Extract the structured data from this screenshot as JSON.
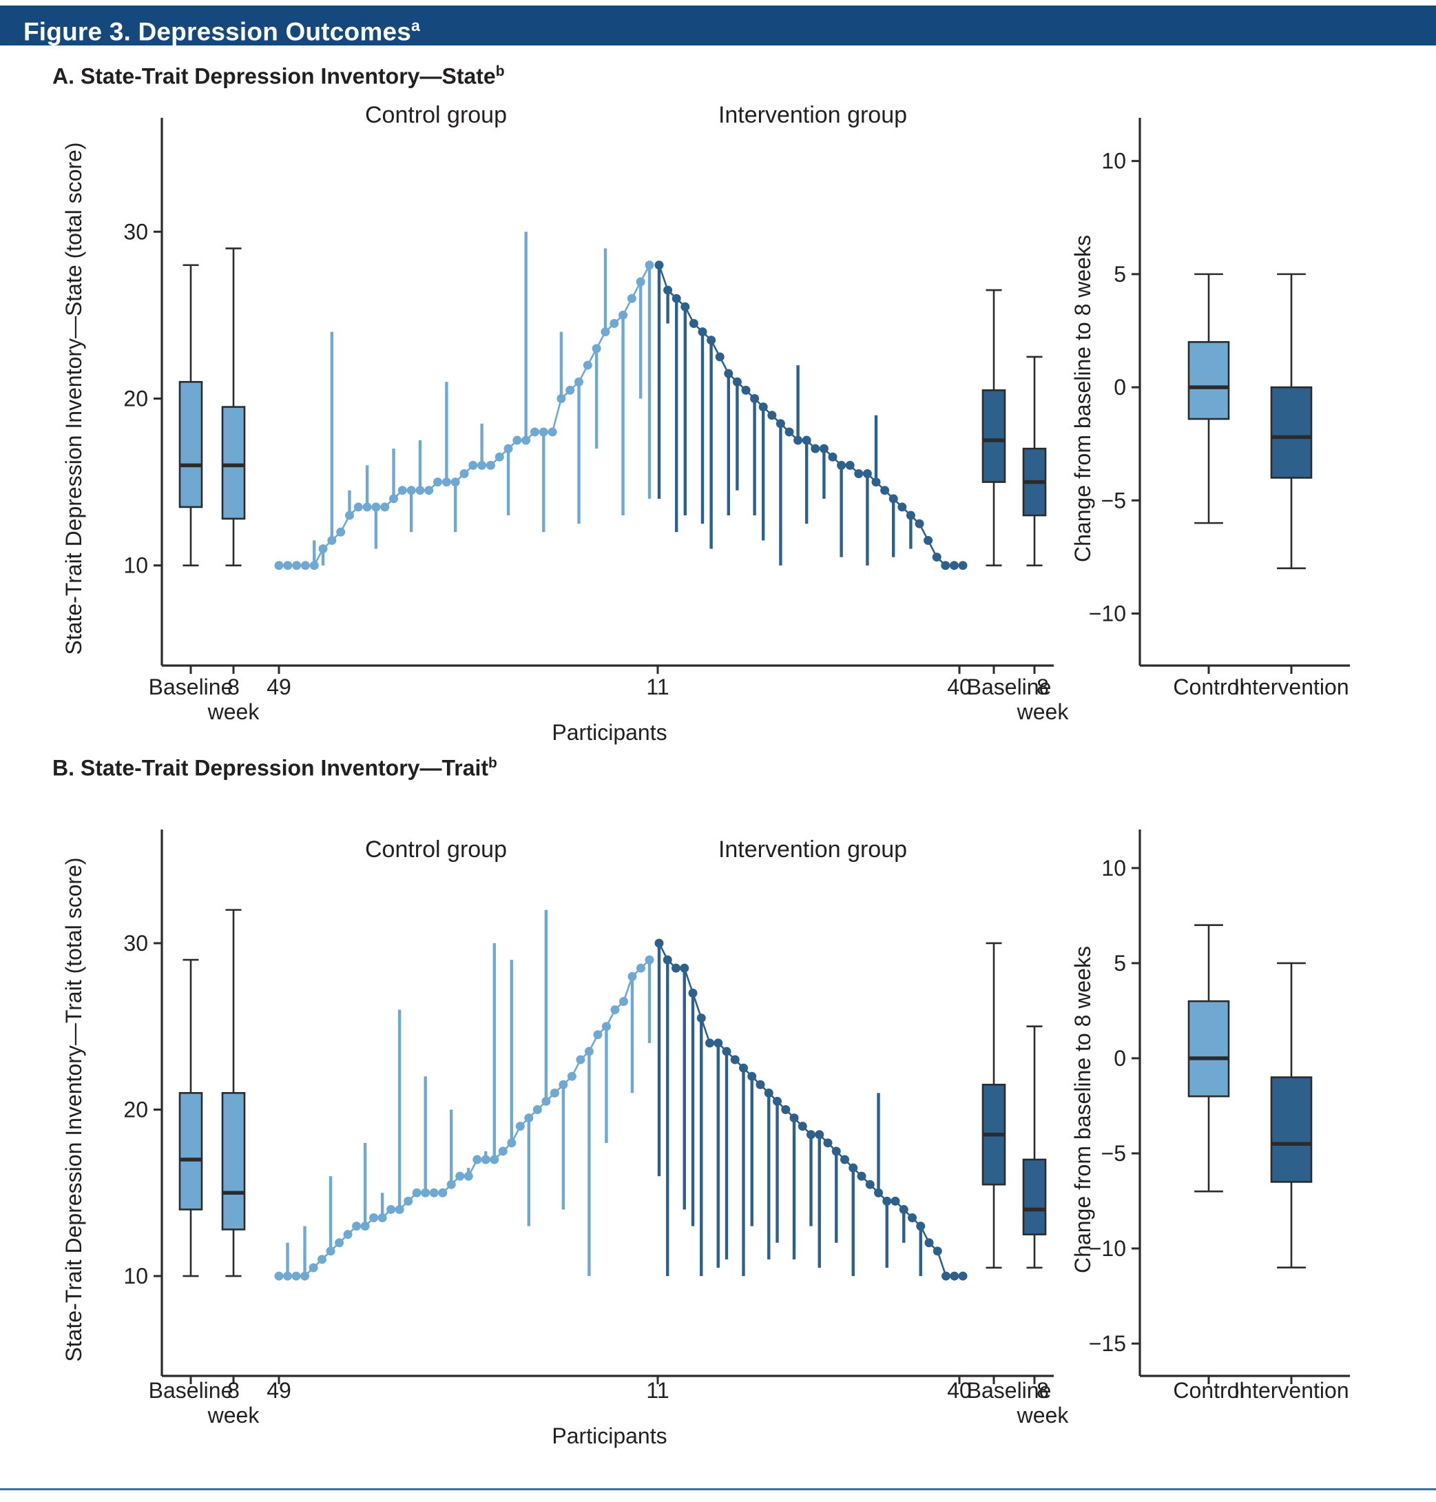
{
  "figure": {
    "title": "Figure 3. Depression Outcomes",
    "title_sup": "a",
    "titlebar_color": "#15497d",
    "bottom_rule_color": "#35709f"
  },
  "colors": {
    "control": "#6fa8d0",
    "intervention": "#2e608c",
    "control_label_text": "#7db3d9",
    "intervention_label_text": "#3f719f",
    "box_stroke": "#2b2b2b",
    "axis": "#2b2b2b"
  },
  "chart_data": [
    {
      "type": "box+waterfall",
      "panel_label": "A. State-Trait Depression Inventory—State",
      "panel_sup": "b",
      "ylabel": "State-Trait Depression Inventory—State (total score)",
      "yticks": [
        10,
        20,
        30
      ],
      "ylim": [
        4,
        36
      ],
      "xlabel": "Participants",
      "group_labels": {
        "control": "Control group",
        "intervention": "Intervention group"
      },
      "xticks": {
        "left": [
          "Baseline",
          "8"
        ],
        "left_sub": "week",
        "start": "49",
        "mid": "11",
        "end": "40",
        "right": [
          "Baseline",
          "8"
        ],
        "right_sub": "week"
      },
      "boxes": {
        "control_baseline": {
          "min": 10,
          "q1": 13.5,
          "median": 16,
          "q3": 21,
          "max": 28
        },
        "control_week8": {
          "min": 10,
          "q1": 12.8,
          "median": 16,
          "q3": 19.5,
          "max": 29
        },
        "intervention_baseline": {
          "min": 10,
          "q1": 15,
          "median": 17.5,
          "q3": 20.5,
          "max": 26.5
        },
        "intervention_week8": {
          "min": 10,
          "q1": 13,
          "median": 15,
          "q3": 17,
          "max": 22.5
        }
      },
      "waterfall": {
        "control": [
          [
            10,
            10
          ],
          [
            10,
            10
          ],
          [
            10,
            10
          ],
          [
            10,
            10
          ],
          [
            10,
            11.5
          ],
          [
            11,
            10
          ],
          [
            11.5,
            24
          ],
          [
            12,
            12
          ],
          [
            13,
            14.5
          ],
          [
            13.5,
            13.5
          ],
          [
            13.5,
            16
          ],
          [
            13.5,
            11
          ],
          [
            13.5,
            13.5
          ],
          [
            14,
            17
          ],
          [
            14.5,
            14.5
          ],
          [
            14.5,
            12
          ],
          [
            14.5,
            17.5
          ],
          [
            14.5,
            14.5
          ],
          [
            15,
            15
          ],
          [
            15,
            21
          ],
          [
            15,
            12
          ],
          [
            15.5,
            15.5
          ],
          [
            16,
            16
          ],
          [
            16,
            18.5
          ],
          [
            16,
            16
          ],
          [
            16.5,
            16.5
          ],
          [
            17,
            13
          ],
          [
            17.5,
            17.5
          ],
          [
            17.5,
            30
          ],
          [
            18,
            18
          ],
          [
            18,
            12
          ],
          [
            18,
            18
          ],
          [
            20,
            24
          ],
          [
            20.5,
            20.5
          ],
          [
            21,
            12.5
          ],
          [
            22,
            22
          ],
          [
            23,
            17
          ],
          [
            24,
            29
          ],
          [
            24.5,
            24.5
          ],
          [
            25,
            13
          ],
          [
            26,
            26
          ],
          [
            27,
            20
          ],
          [
            28,
            14
          ]
        ],
        "intervention": [
          [
            28,
            14
          ],
          [
            26.5,
            24.5
          ],
          [
            26,
            12
          ],
          [
            25.5,
            13
          ],
          [
            24.5,
            24.5
          ],
          [
            24,
            12.5
          ],
          [
            23.5,
            11
          ],
          [
            22.5,
            22.5
          ],
          [
            21.5,
            13
          ],
          [
            21,
            14.5
          ],
          [
            20.5,
            20.5
          ],
          [
            20,
            13
          ],
          [
            19.5,
            11.5
          ],
          [
            19,
            19
          ],
          [
            18.5,
            10
          ],
          [
            18,
            18
          ],
          [
            17.5,
            22
          ],
          [
            17.5,
            12.5
          ],
          [
            17,
            17
          ],
          [
            17,
            14
          ],
          [
            16.5,
            16.5
          ],
          [
            16,
            10.5
          ],
          [
            16,
            16
          ],
          [
            15.5,
            15.5
          ],
          [
            15.5,
            10
          ],
          [
            15,
            19
          ],
          [
            14.5,
            14.5
          ],
          [
            14,
            10.5
          ],
          [
            13.5,
            13.5
          ],
          [
            13,
            11
          ],
          [
            12.5,
            12.5
          ],
          [
            11.5,
            11.5
          ],
          [
            10.5,
            10.5
          ],
          [
            10,
            10
          ],
          [
            10,
            10
          ],
          [
            10,
            10
          ]
        ]
      },
      "change": {
        "ylabel": "Change from baseline to 8 weeks",
        "yticks": [
          10,
          5,
          0,
          -5,
          -10
        ],
        "ylim": [
          -12.3,
          11.3
        ],
        "categories": [
          "Control",
          "Intervention"
        ],
        "control": {
          "min": -6,
          "q1": -1.4,
          "median": 0,
          "q3": 2,
          "max": 5
        },
        "intervention": {
          "min": -8,
          "q1": -4,
          "median": -2.2,
          "q3": 0,
          "max": 5
        }
      }
    },
    {
      "type": "box+waterfall",
      "panel_label": "B. State-Trait Depression Inventory—Trait",
      "panel_sup": "b",
      "ylabel": "State-Trait Depression Inventory—Trait (total score)",
      "yticks": [
        10,
        20,
        30
      ],
      "ylim": [
        4,
        36
      ],
      "xlabel": "Participants",
      "group_labels": {
        "control": "Control group",
        "intervention": "Intervention group"
      },
      "xticks": {
        "left": [
          "Baseline",
          "8"
        ],
        "left_sub": "week",
        "start": "49",
        "mid": "11",
        "end": "40",
        "right": [
          "Baseline",
          "8"
        ],
        "right_sub": "week"
      },
      "boxes": {
        "control_baseline": {
          "min": 10,
          "q1": 14,
          "median": 17,
          "q3": 21,
          "max": 29
        },
        "control_week8": {
          "min": 10,
          "q1": 12.8,
          "median": 15,
          "q3": 21,
          "max": 32
        },
        "intervention_baseline": {
          "min": 10.5,
          "q1": 15.5,
          "median": 18.5,
          "q3": 21.5,
          "max": 30
        },
        "intervention_week8": {
          "min": 10.5,
          "q1": 12.5,
          "median": 14,
          "q3": 17,
          "max": 25
        }
      },
      "waterfall": {
        "control": [
          [
            10,
            10
          ],
          [
            10,
            12
          ],
          [
            10,
            10
          ],
          [
            10,
            13
          ],
          [
            10.5,
            10.5
          ],
          [
            11,
            11
          ],
          [
            11.5,
            16
          ],
          [
            12,
            12
          ],
          [
            12.5,
            12.5
          ],
          [
            13,
            13
          ],
          [
            13,
            18
          ],
          [
            13.5,
            13.5
          ],
          [
            13.5,
            15
          ],
          [
            14,
            14
          ],
          [
            14,
            26
          ],
          [
            14.5,
            14.5
          ],
          [
            15,
            15
          ],
          [
            15,
            22
          ],
          [
            15,
            15
          ],
          [
            15,
            15
          ],
          [
            15.5,
            20
          ],
          [
            16,
            16
          ],
          [
            16,
            16.5
          ],
          [
            17,
            17
          ],
          [
            17,
            17.5
          ],
          [
            17,
            30
          ],
          [
            17.5,
            17.5
          ],
          [
            18,
            29
          ],
          [
            19,
            19
          ],
          [
            19.5,
            13
          ],
          [
            20,
            20
          ],
          [
            20.5,
            32
          ],
          [
            21,
            21
          ],
          [
            21.5,
            14
          ],
          [
            22,
            22
          ],
          [
            23,
            23
          ],
          [
            23.5,
            10
          ],
          [
            24.5,
            24.5
          ],
          [
            25,
            18
          ],
          [
            26,
            26
          ],
          [
            26.5,
            26.5
          ],
          [
            28,
            21
          ],
          [
            28.5,
            28.5
          ],
          [
            29,
            24
          ]
        ],
        "intervention": [
          [
            30,
            16
          ],
          [
            29,
            10
          ],
          [
            28.5,
            28.5
          ],
          [
            28.5,
            14
          ],
          [
            27,
            13
          ],
          [
            25.5,
            10
          ],
          [
            24,
            24
          ],
          [
            24,
            10.5
          ],
          [
            23.5,
            11
          ],
          [
            23,
            23
          ],
          [
            22.5,
            10
          ],
          [
            22,
            13
          ],
          [
            21.5,
            21.5
          ],
          [
            21,
            11
          ],
          [
            20.5,
            12
          ],
          [
            20,
            20
          ],
          [
            19.5,
            11
          ],
          [
            19,
            19
          ],
          [
            18.5,
            13
          ],
          [
            18.5,
            10.5
          ],
          [
            18,
            18
          ],
          [
            17.5,
            12
          ],
          [
            17,
            17
          ],
          [
            16.5,
            10
          ],
          [
            16,
            16
          ],
          [
            15.5,
            15.5
          ],
          [
            15,
            21
          ],
          [
            14.5,
            10.5
          ],
          [
            14.5,
            14.5
          ],
          [
            14,
            12
          ],
          [
            13.5,
            13.5
          ],
          [
            13,
            10
          ],
          [
            12,
            12
          ],
          [
            11.5,
            11.5
          ],
          [
            10,
            10
          ],
          [
            10,
            10
          ],
          [
            10,
            10
          ]
        ]
      },
      "change": {
        "ylabel": "Change from baseline to 8 weeks",
        "yticks": [
          10,
          5,
          0,
          -5,
          -10,
          -15
        ],
        "ylim": [
          -16.7,
          11.3
        ],
        "categories": [
          "Control",
          "Intervention"
        ],
        "control": {
          "min": -7,
          "q1": -2,
          "median": 0,
          "q3": 3,
          "max": 7
        },
        "intervention": {
          "min": -11,
          "q1": -6.5,
          "median": -4.5,
          "q3": -1,
          "max": 5
        }
      }
    }
  ]
}
